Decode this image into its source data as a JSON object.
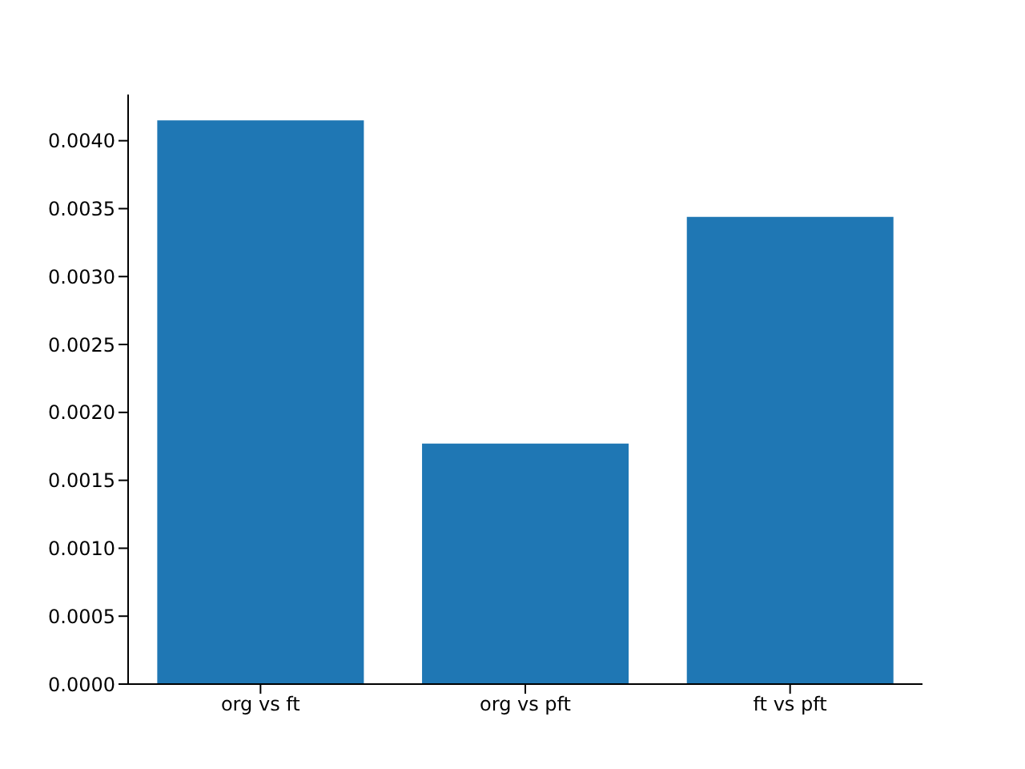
{
  "chart_data": {
    "type": "bar",
    "categories": [
      "org vs ft",
      "org vs pft",
      "ft vs pft"
    ],
    "values": [
      0.00415,
      0.00177,
      0.00344
    ],
    "color": "#1f77b4",
    "ylim": [
      0,
      0.00434
    ],
    "yticks": [
      {
        "value": 0,
        "label": "0.0000"
      },
      {
        "value": 0.0005,
        "label": "0.0005"
      },
      {
        "value": 0.001,
        "label": "0.0010"
      },
      {
        "value": 0.0015,
        "label": "0.0015"
      },
      {
        "value": 0.002,
        "label": "0.0020"
      },
      {
        "value": 0.0025,
        "label": "0.0025"
      },
      {
        "value": 0.003,
        "label": "0.0030"
      },
      {
        "value": 0.0035,
        "label": "0.0035"
      },
      {
        "value": 0.004,
        "label": "0.0040"
      }
    ]
  }
}
